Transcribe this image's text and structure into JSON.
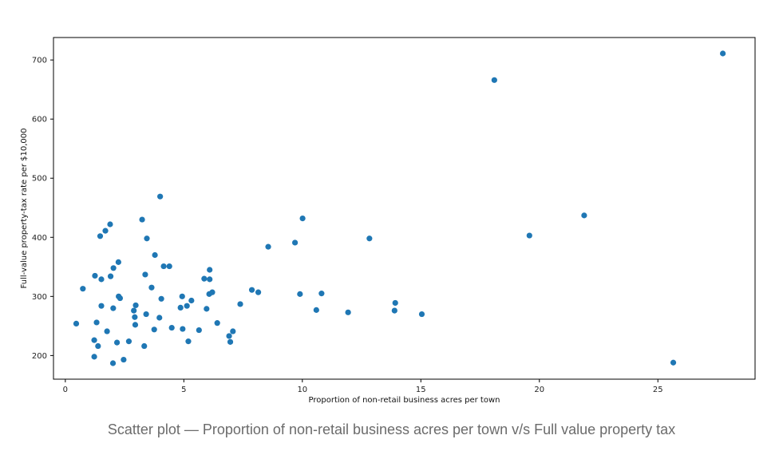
{
  "caption": "Scatter plot — Proportion of non-retail business acres per town v/s Full value property tax",
  "chart_data": {
    "type": "scatter",
    "title": "",
    "xlabel": "Proportion of non-retail business acres per town",
    "ylabel": "Full-value property-tax rate per $10,000",
    "xlim": [
      -0.5,
      29.1
    ],
    "ylim": [
      160,
      738
    ],
    "xticks": [
      0,
      5,
      10,
      15,
      20,
      25
    ],
    "yticks": [
      200,
      300,
      400,
      500,
      600,
      700
    ],
    "grid": false,
    "legend": "none",
    "marker_color": "#1f77b4",
    "points": [
      [
        0.46,
        254
      ],
      [
        0.74,
        313
      ],
      [
        1.22,
        198
      ],
      [
        1.22,
        226
      ],
      [
        1.25,
        335
      ],
      [
        1.32,
        256
      ],
      [
        1.38,
        216
      ],
      [
        1.47,
        402
      ],
      [
        1.52,
        284
      ],
      [
        1.52,
        329
      ],
      [
        1.69,
        411
      ],
      [
        1.76,
        241
      ],
      [
        1.89,
        422
      ],
      [
        1.91,
        334
      ],
      [
        2.01,
        187
      ],
      [
        2.02,
        280
      ],
      [
        2.03,
        348
      ],
      [
        2.18,
        222
      ],
      [
        2.24,
        358
      ],
      [
        2.25,
        300
      ],
      [
        2.31,
        297
      ],
      [
        2.46,
        193
      ],
      [
        2.68,
        224
      ],
      [
        2.89,
        276
      ],
      [
        2.93,
        265
      ],
      [
        2.95,
        252
      ],
      [
        2.97,
        285
      ],
      [
        3.24,
        430
      ],
      [
        3.33,
        216
      ],
      [
        3.37,
        337
      ],
      [
        3.41,
        270
      ],
      [
        3.44,
        398
      ],
      [
        3.64,
        315
      ],
      [
        3.75,
        244
      ],
      [
        3.78,
        370
      ],
      [
        3.97,
        264
      ],
      [
        4.0,
        469
      ],
      [
        4.05,
        296
      ],
      [
        4.15,
        351
      ],
      [
        4.39,
        351
      ],
      [
        4.49,
        247
      ],
      [
        4.86,
        281
      ],
      [
        4.93,
        300
      ],
      [
        4.95,
        245
      ],
      [
        5.13,
        284
      ],
      [
        5.19,
        224
      ],
      [
        5.32,
        293
      ],
      [
        5.64,
        243
      ],
      [
        5.86,
        330
      ],
      [
        5.96,
        279
      ],
      [
        6.07,
        304
      ],
      [
        6.09,
        345
      ],
      [
        6.09,
        329
      ],
      [
        6.2,
        307
      ],
      [
        6.41,
        255
      ],
      [
        6.91,
        233
      ],
      [
        6.96,
        223
      ],
      [
        7.07,
        241
      ],
      [
        7.38,
        287
      ],
      [
        7.87,
        311
      ],
      [
        8.14,
        307
      ],
      [
        8.56,
        384
      ],
      [
        9.69,
        391
      ],
      [
        9.9,
        304
      ],
      [
        10.01,
        432
      ],
      [
        10.59,
        277
      ],
      [
        10.81,
        305
      ],
      [
        11.93,
        273
      ],
      [
        12.83,
        398
      ],
      [
        13.89,
        276
      ],
      [
        13.92,
        289
      ],
      [
        15.04,
        270
      ],
      [
        18.1,
        666
      ],
      [
        19.58,
        403
      ],
      [
        21.89,
        437
      ],
      [
        25.65,
        188
      ],
      [
        27.74,
        711
      ]
    ]
  }
}
